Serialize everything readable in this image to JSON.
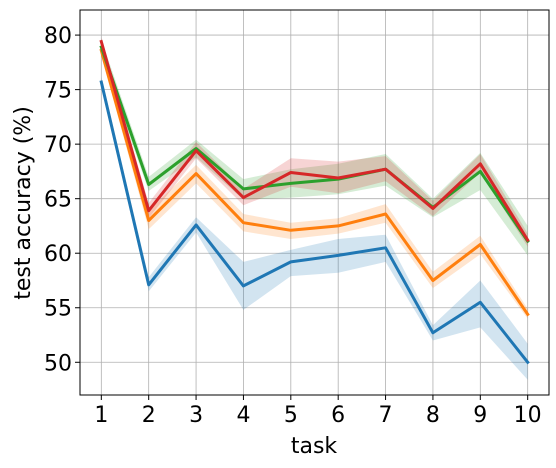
{
  "chart_data": {
    "type": "line",
    "xlabel": "task",
    "ylabel": "test accuracy (%)",
    "x": [
      1,
      2,
      3,
      4,
      5,
      6,
      7,
      8,
      9,
      10
    ],
    "xlim": [
      0.55,
      10.45
    ],
    "ylim": [
      47,
      82.3
    ],
    "xticks": [
      1,
      2,
      3,
      4,
      5,
      6,
      7,
      8,
      9,
      10
    ],
    "yticks": [
      50,
      55,
      60,
      65,
      70,
      75,
      80
    ],
    "grid": true,
    "legend": "none",
    "series": [
      {
        "color": "#1f77b4",
        "values": [
          75.7,
          57.1,
          62.6,
          57.0,
          59.2,
          59.8,
          60.5,
          52.7,
          55.5,
          50.0
        ],
        "lower": [
          75.2,
          56.5,
          61.9,
          54.8,
          57.9,
          58.2,
          59.2,
          52.0,
          53.2,
          48.4
        ],
        "upper": [
          76.2,
          57.8,
          63.3,
          59.2,
          60.3,
          61.3,
          61.7,
          53.4,
          57.5,
          51.7
        ]
      },
      {
        "color": "#ff7f0e",
        "values": [
          78.6,
          63.0,
          67.3,
          62.8,
          62.1,
          62.5,
          63.6,
          57.5,
          60.8,
          54.4
        ],
        "lower": [
          78.1,
          62.2,
          66.4,
          62.0,
          61.3,
          61.8,
          62.8,
          56.8,
          59.9,
          54.0
        ],
        "upper": [
          79.1,
          63.9,
          68.1,
          63.6,
          62.8,
          63.2,
          64.5,
          58.3,
          61.6,
          54.9
        ]
      },
      {
        "color": "#2ca02c",
        "values": [
          78.9,
          66.3,
          69.6,
          65.9,
          66.4,
          66.8,
          67.7,
          64.2,
          67.5,
          61.1
        ],
        "lower": [
          78.2,
          65.7,
          68.8,
          64.9,
          65.1,
          65.4,
          66.2,
          63.3,
          65.8,
          59.8
        ],
        "upper": [
          79.6,
          67.0,
          70.4,
          66.8,
          67.7,
          68.2,
          69.1,
          65.0,
          69.2,
          62.5
        ]
      },
      {
        "color": "#d62728",
        "values": [
          79.4,
          63.9,
          69.4,
          65.1,
          67.4,
          66.9,
          67.7,
          64.1,
          68.2,
          61.2
        ],
        "lower": [
          79.0,
          63.2,
          68.7,
          64.4,
          66.1,
          65.5,
          66.6,
          63.4,
          67.4,
          60.6
        ],
        "upper": [
          79.8,
          64.6,
          70.2,
          65.9,
          68.7,
          68.4,
          68.9,
          64.8,
          69.1,
          61.8
        ]
      }
    ]
  }
}
